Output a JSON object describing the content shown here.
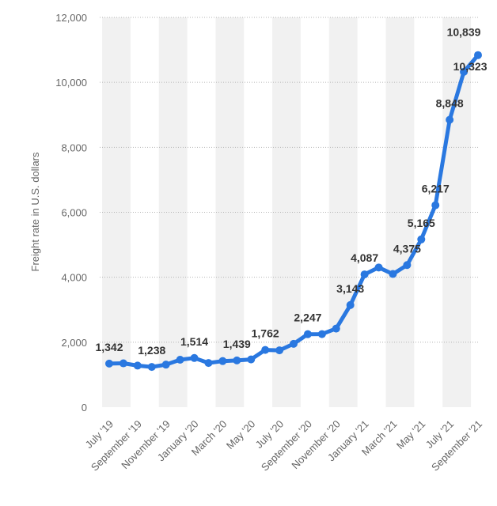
{
  "chart_data": {
    "type": "line",
    "ylabel": "Freight rate in U.S. dollars",
    "xlabel": "",
    "ylim": [
      0,
      12000
    ],
    "y_ticks": [
      0,
      2000,
      4000,
      6000,
      8000,
      10000,
      12000
    ],
    "y_tick_labels": [
      "0",
      "2,000",
      "4,000",
      "6,000",
      "8,000",
      "10,000",
      "12,000"
    ],
    "grid": true,
    "legend": "none",
    "line_color": "#2a78e0",
    "band_color": "#f1f1f1",
    "x": [
      "July '19",
      "Aug '19",
      "September '19",
      "Oct '19",
      "November '19",
      "Dec '19",
      "January '20",
      "Feb '20",
      "March '20",
      "Apr '20",
      "May '20",
      "Jun '20",
      "July '20",
      "Aug '20",
      "September '20",
      "Oct '20",
      "November '20",
      "Dec '20",
      "January '21",
      "Feb '21",
      "March '21",
      "Apr '21",
      "May '21",
      "Jun '21",
      "July '21",
      "Aug '21",
      "September '21"
    ],
    "x_tick_labels": [
      "July '19",
      "September '19",
      "November '19",
      "January '20",
      "March '20",
      "May '20",
      "July '20",
      "September '20",
      "November '20",
      "January '21",
      "March '21",
      "May '21",
      "July '21",
      "September '21"
    ],
    "series": [
      {
        "values": [
          1342,
          1350,
          1280,
          1238,
          1310,
          1460,
          1514,
          1360,
          1420,
          1439,
          1470,
          1762,
          1750,
          1950,
          2247,
          2250,
          2420,
          3143,
          4087,
          4300,
          4100,
          4375,
          5165,
          6217,
          8848,
          10323,
          10839
        ]
      }
    ],
    "data_labels": [
      {
        "index": 0,
        "text": "1,342"
      },
      {
        "index": 3,
        "text": "1,238"
      },
      {
        "index": 6,
        "text": "1,514"
      },
      {
        "index": 9,
        "text": "1,439"
      },
      {
        "index": 11,
        "text": "1,762"
      },
      {
        "index": 14,
        "text": "2,247"
      },
      {
        "index": 17,
        "text": "3,143"
      },
      {
        "index": 18,
        "text": "4,087"
      },
      {
        "index": 21,
        "text": "4,375"
      },
      {
        "index": 22,
        "text": "5,165"
      },
      {
        "index": 23,
        "text": "6,217"
      },
      {
        "index": 24,
        "text": "8,848"
      },
      {
        "index": 25,
        "text": "10,323"
      },
      {
        "index": 26,
        "text": "10,839"
      }
    ]
  }
}
